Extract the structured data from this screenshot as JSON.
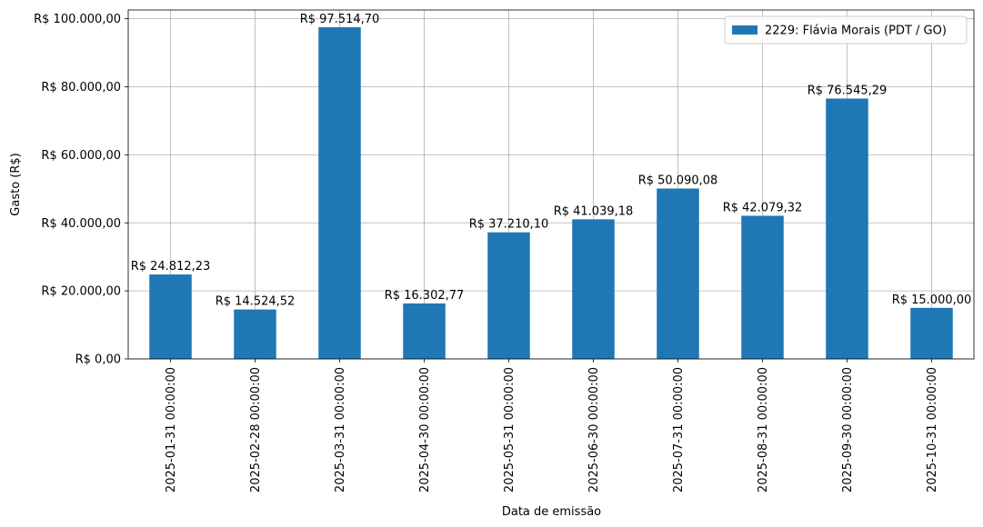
{
  "chart_data": {
    "type": "bar",
    "categories": [
      "2025-01-31 00:00:00",
      "2025-02-28 00:00:00",
      "2025-03-31 00:00:00",
      "2025-04-30 00:00:00",
      "2025-05-31 00:00:00",
      "2025-06-30 00:00:00",
      "2025-07-31 00:00:00",
      "2025-08-31 00:00:00",
      "2025-09-30 00:00:00",
      "2025-10-31 00:00:00"
    ],
    "series": [
      {
        "name": "2229: Flávia Morais (PDT / GO)",
        "color": "#1f77b4",
        "values": [
          24812.23,
          14524.52,
          97514.7,
          16302.77,
          37210.1,
          41039.18,
          50090.08,
          42079.32,
          76545.29,
          15000.0
        ]
      }
    ],
    "data_labels": [
      "R$ 24.812,23",
      "R$ 14.524,52",
      "R$ 97.514,70",
      "R$ 16.302,77",
      "R$ 37.210,10",
      "R$ 41.039,18",
      "R$ 50.090,08",
      "R$ 42.079,32",
      "R$ 76.545,29",
      "R$ 15.000,00"
    ],
    "title": "",
    "xlabel": "Data de emissão",
    "ylabel": "Gasto (R$)",
    "ylim": [
      0,
      102577.15
    ],
    "yticks": [
      0,
      20000,
      40000,
      60000,
      80000,
      100000
    ],
    "ytick_labels": [
      "R$ 0,00",
      "R$ 20.000,00",
      "R$ 40.000,00",
      "R$ 60.000,00",
      "R$ 80.000,00",
      "R$ 100.000,00"
    ],
    "grid": true,
    "legend_position": "top-right",
    "colors": {
      "grid": "#b0b0b0",
      "axis": "#000000"
    }
  }
}
